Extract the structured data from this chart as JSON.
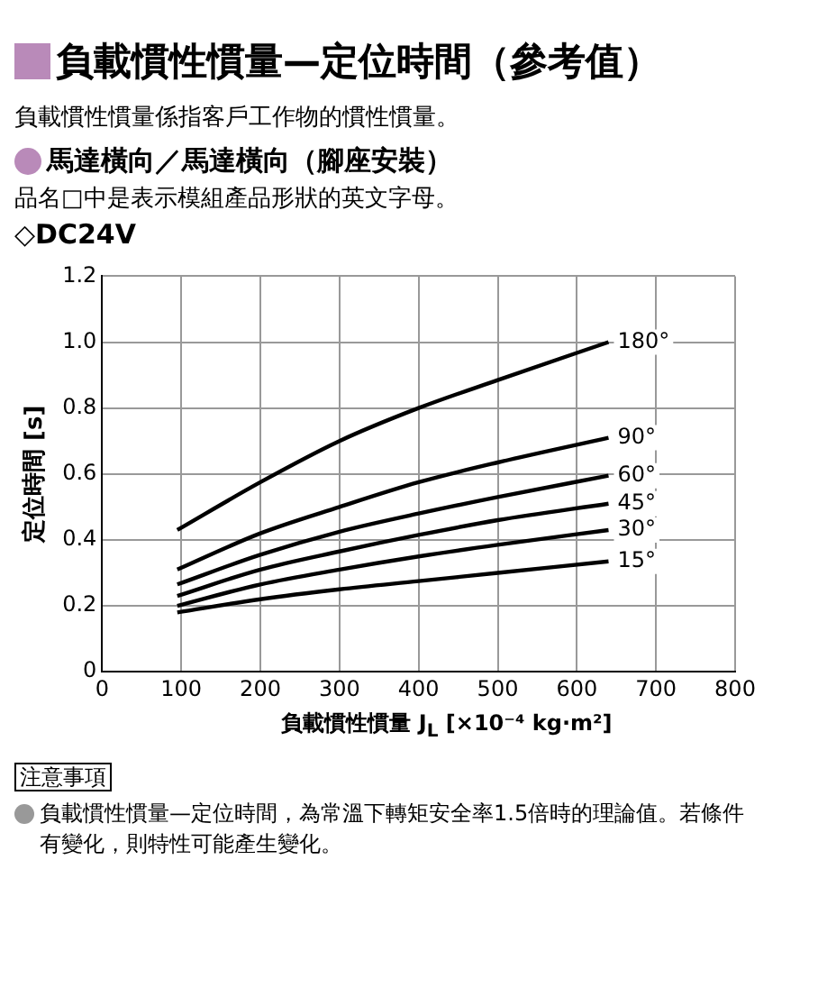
{
  "chart_data": {
    "type": "line",
    "title": "負載慣性慣量—定位時間（參考值）",
    "subtitle": "負載慣性慣量係指客戶工作物的慣性慣量。",
    "xlabel": "負載慣性慣量 J$_{L}$ [×10⁻⁴ kg·m²]",
    "ylabel": "定位時間 [s]",
    "x": [
      95,
      200,
      300,
      400,
      500,
      640
    ],
    "series": [
      {
        "name": "180°",
        "color": "#000000",
        "values": [
          0.43,
          0.575,
          0.7,
          0.8,
          0.885,
          1.0
        ]
      },
      {
        "name": "90°",
        "color": "#000000",
        "values": [
          0.31,
          0.42,
          0.5,
          0.575,
          0.635,
          0.71
        ]
      },
      {
        "name": "60°",
        "color": "#000000",
        "values": [
          0.265,
          0.355,
          0.425,
          0.48,
          0.53,
          0.595
        ]
      },
      {
        "name": "45°",
        "color": "#000000",
        "values": [
          0.23,
          0.31,
          0.365,
          0.415,
          0.46,
          0.51
        ]
      },
      {
        "name": "30°",
        "color": "#000000",
        "values": [
          0.2,
          0.265,
          0.31,
          0.35,
          0.385,
          0.43
        ]
      },
      {
        "name": "15°",
        "color": "#000000",
        "values": [
          0.18,
          0.22,
          0.25,
          0.275,
          0.3,
          0.335
        ]
      }
    ],
    "xlim": [
      0,
      800
    ],
    "xticks": [
      0,
      100,
      200,
      300,
      400,
      500,
      600,
      700,
      800
    ],
    "ylim": [
      0,
      1.2
    ],
    "yticks": [
      0,
      0.2,
      0.4,
      0.6,
      0.8,
      {
        "value": 1.0,
        "label": "1.0"
      },
      1.2
    ],
    "grid": true,
    "legend": false,
    "marker": "none",
    "line_style": "solid",
    "annotations": [
      "馬達橫向／馬達橫向（腳座安裝）",
      "品名□中是表示模組產品形狀的英文字母。",
      "◇DC24V",
      "注意事項",
      "負載慣性慣量—定位時間，為常溫下轉矩安全率1.5倍時的理論值。若條件有變化，則特性可能產生變化。"
    ]
  }
}
